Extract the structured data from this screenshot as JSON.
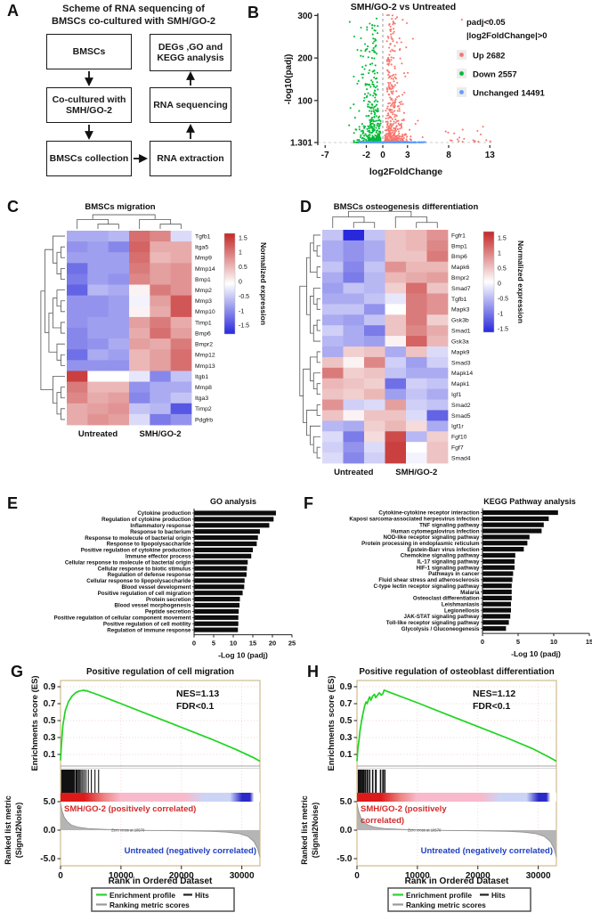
{
  "panelA": {
    "letter": "A",
    "title_line1": "Scheme of RNA sequencing of",
    "title_line2": "BMSCs co-cultured with SMH/GO-2",
    "boxes": {
      "bmscs": "BMSCs",
      "cocultured": "Co-cultured with SMH/GO-2",
      "collection": "BMSCs collection",
      "degs": "DEGs ,GO and KEGG analysis",
      "sequencing": "RNA sequencing",
      "extraction": "RNA extraction"
    }
  },
  "panelB": {
    "letter": "B",
    "chart_data": {
      "type": "scatter",
      "title": "SMH/GO-2 vs Untreated",
      "xlabel": "log2FoldChange",
      "ylabel": "-log10(padj)",
      "x_ticks": [
        -7,
        -2,
        0,
        3,
        8,
        13
      ],
      "y_tick_labels": [
        "300",
        "200",
        "100",
        "1.301"
      ],
      "y_tick_values": [
        300,
        200,
        100,
        1.301
      ],
      "xlim": [
        -7.9,
        13.5
      ],
      "ylim": [
        1.301,
        310
      ],
      "threshold_x": 0,
      "threshold_y": 1.301,
      "legend_header_line1": "padj<0.05",
      "legend_header_line2": "|log2FoldChange|>0",
      "legend_items": [
        {
          "label": "Up 2682",
          "color": "#f8766d",
          "count": 2682
        },
        {
          "label": "Down 2557",
          "color": "#00ba38",
          "count": 2557
        },
        {
          "label": "Unchanged 14491",
          "color": "#619cff",
          "count": 14491
        }
      ]
    }
  },
  "panelC": {
    "letter": "C",
    "chart_data": {
      "type": "heatmap",
      "title": "BMSCs migration",
      "column_groups": [
        "Untreated",
        "SMH/GO-2"
      ],
      "colorbar_label": "Normalized expression",
      "colorbar_ticks": [
        "1.5",
        "1",
        "0.5",
        "0",
        "-0.5",
        "-1",
        "-1.5"
      ],
      "colorbar_tick_values": [
        1.5,
        1,
        0.5,
        0,
        -0.5,
        -1,
        -1.5
      ],
      "genes": [
        "Tgfb1",
        "Itga5",
        "Mmp9",
        "Mmp14",
        "Bmp1",
        "Mmp2",
        "Mmp3",
        "Mmp10",
        "Timp1",
        "Bmp6",
        "Bmpr2",
        "Mmp12",
        "Mmp13",
        "Itgb1",
        "Mmp8",
        "Itga3",
        "Timp2",
        "Pdgfrb"
      ],
      "values": [
        [
          -0.7,
          -0.7,
          -0.6,
          1.2,
          1.0,
          -0.3
        ],
        [
          -0.9,
          -0.8,
          -1.0,
          1.3,
          0.7,
          0.7
        ],
        [
          -0.8,
          -0.8,
          -0.8,
          1.2,
          0.6,
          0.7
        ],
        [
          -1.2,
          -0.8,
          -0.8,
          1.1,
          0.8,
          0.9
        ],
        [
          -1.1,
          -0.8,
          -0.9,
          1.0,
          0.8,
          0.9
        ],
        [
          -1.3,
          -0.6,
          -0.7,
          0.1,
          1.1,
          0.9
        ],
        [
          -0.9,
          -0.9,
          -0.8,
          -0.1,
          0.8,
          1.4
        ],
        [
          -0.9,
          -0.9,
          -0.8,
          0.1,
          0.7,
          1.4
        ],
        [
          -0.9,
          -0.8,
          -0.8,
          0.8,
          1.1,
          0.7
        ],
        [
          -1.0,
          -0.8,
          -0.8,
          0.7,
          1.2,
          0.8
        ],
        [
          -1.0,
          -0.9,
          -0.7,
          0.8,
          0.7,
          1.1
        ],
        [
          -1.2,
          -0.7,
          -0.8,
          0.6,
          0.8,
          1.2
        ],
        [
          -0.9,
          -0.9,
          -0.9,
          0.6,
          0.8,
          1.2
        ],
        [
          1.6,
          0.0,
          0.0,
          -0.2,
          -1.0,
          -0.5
        ],
        [
          1.1,
          0.6,
          0.6,
          -0.9,
          -0.7,
          -0.7
        ],
        [
          1.0,
          0.7,
          0.8,
          -1.0,
          -0.7,
          -0.5
        ],
        [
          0.7,
          0.8,
          0.9,
          -0.5,
          -0.6,
          -1.4
        ],
        [
          0.7,
          0.9,
          0.8,
          -0.3,
          -1.1,
          -0.9
        ]
      ]
    }
  },
  "panelD": {
    "letter": "D",
    "chart_data": {
      "type": "heatmap",
      "title": "BMSCs osteogenesis differentiation",
      "column_groups": [
        "Untreated",
        "SMH/GO-2"
      ],
      "colorbar_label": "Normalized expression",
      "colorbar_ticks": [
        "1.5",
        "1",
        "0.5",
        "0",
        "-0.5",
        "-1",
        "-1.5"
      ],
      "colorbar_tick_values": [
        1.5,
        1,
        0.5,
        0,
        -0.5,
        -1,
        -1.5
      ],
      "genes": [
        "Fgfr1",
        "Bmp1",
        "Bmp6",
        "Mapk6",
        "Bmpr2",
        "Smad7",
        "Tgfb1",
        "Mapk3",
        "Gsk3b",
        "Smad1",
        "Gsk3a",
        "Mapk9",
        "Smad3",
        "Mapk14",
        "Mapk1",
        "Igf1",
        "Smad2",
        "Smad5",
        "Igf1r",
        "Fgf10",
        "Fgf7",
        "Smad4"
      ],
      "values": [
        [
          -0.5,
          -1.8,
          -0.5,
          0.5,
          0.6,
          0.9
        ],
        [
          -0.7,
          -0.9,
          -0.7,
          0.5,
          0.6,
          1.0
        ],
        [
          -0.7,
          -0.9,
          -0.7,
          0.5,
          0.5,
          1.1
        ],
        [
          -0.5,
          -1.0,
          -0.5,
          0.9,
          0.6,
          0.6
        ],
        [
          -0.7,
          -1.1,
          -0.6,
          0.6,
          0.7,
          0.8
        ],
        [
          -0.8,
          -0.5,
          -0.6,
          0.4,
          1.2,
          0.5
        ],
        [
          -0.7,
          -0.7,
          -0.5,
          -0.2,
          1.1,
          0.9
        ],
        [
          -0.5,
          -0.5,
          -0.9,
          0.0,
          1.1,
          0.9
        ],
        [
          -0.7,
          -0.8,
          -0.5,
          0.5,
          1.1,
          0.4
        ],
        [
          -0.4,
          -0.7,
          -1.1,
          0.5,
          1.0,
          0.7
        ],
        [
          -0.6,
          -0.7,
          -0.8,
          0.1,
          1.3,
          0.6
        ],
        [
          -0.7,
          0.4,
          0.5,
          -0.7,
          0.5,
          -0.3
        ],
        [
          0.5,
          0.1,
          1.0,
          -0.4,
          -0.8,
          -0.4
        ],
        [
          1.1,
          0.4,
          0.5,
          -0.5,
          -0.7,
          -0.7
        ],
        [
          0.6,
          0.5,
          0.4,
          -1.2,
          -0.4,
          -0.5
        ],
        [
          0.5,
          0.4,
          0.6,
          -0.8,
          -0.5,
          -0.7
        ],
        [
          0.9,
          -0.4,
          -0.3,
          0.8,
          -0.4,
          -0.5
        ],
        [
          0.5,
          0.1,
          0.5,
          0.5,
          -0.3,
          -1.3
        ],
        [
          -0.6,
          -0.7,
          0.4,
          0.6,
          0.3,
          -0.7
        ],
        [
          -0.3,
          -1.1,
          0.3,
          1.5,
          -0.6,
          0.4
        ],
        [
          -0.4,
          -0.9,
          -0.3,
          1.6,
          0.0,
          0.5
        ],
        [
          -0.3,
          -1.0,
          -0.4,
          1.6,
          -0.1,
          0.5
        ]
      ]
    }
  },
  "panelE": {
    "letter": "E",
    "chart_data": {
      "type": "bar",
      "title": "GO analysis",
      "xlabel": "-Log 10 (padj)",
      "x_ticks": [
        0,
        5,
        10,
        15,
        20,
        25
      ],
      "xlim": [
        0,
        25
      ],
      "categories": [
        "Cytokine production",
        "Regulation of cytokine production",
        "Inflammatory response",
        "Response to bacterium",
        "Response to molecule of bacterial origin",
        "Response to lipopolysaccharide",
        "Positive regulation of cytokine production",
        "Immune effector process",
        "Cellular response to molecule of bacterial origin",
        "Cellular response to biotic stimulus",
        "Regulation of defense response",
        "Cellular response to lipopolysaccharide",
        "Blood vessel development",
        "Positive regulation of cell migration",
        "Protein secretion",
        "Blood vessel morphogenesis",
        "Peptide secretion",
        "Positive regulation of cellular component movement",
        "Positive regulation of cell motility",
        "Regulation of immune response"
      ],
      "values": [
        20.9,
        20.3,
        19.2,
        16.8,
        16.3,
        16.0,
        15.0,
        14.6,
        13.7,
        13.5,
        13.4,
        12.9,
        12.8,
        12.4,
        11.7,
        11.6,
        11.4,
        11.3,
        11.3,
        11.2
      ],
      "bar_color": "#0d0d0d"
    }
  },
  "panelF": {
    "letter": "F",
    "chart_data": {
      "type": "bar",
      "title": "KEGG Pathway analysis",
      "xlabel": "-Log 10 (padj)",
      "x_ticks": [
        0,
        5,
        10,
        15
      ],
      "xlim": [
        0,
        15
      ],
      "categories": [
        "Cytokine-cytokine receptor interaction",
        "Kaposi sarcoma-associated herpesvirus infection",
        "TNF signaling pathway",
        "Human cytomegalovirus infection",
        "NOD-like receptor signaling pathway",
        "Protein processing in endoplasmic reticulum",
        "Epstein-Barr virus infection",
        "Chemokine signaling pathway",
        "IL-17 signaling pathway",
        "HIF-1 signaling pathway",
        "Pathways in cancer",
        "Fluid shear stress and atherosclerosis",
        "C-type lectin receptor signaling pathway",
        "Malaria",
        "Osteoclast differentiation",
        "Leishmaniasis",
        "Legionellosis",
        "JAK-STAT signaling pathway",
        "Toll-like receptor signaling pathway",
        "Glycolysis / Gluconeogenesis"
      ],
      "values": [
        10.6,
        9.3,
        8.6,
        8.3,
        6.6,
        6.3,
        5.8,
        4.6,
        4.5,
        4.5,
        4.3,
        4.2,
        4.1,
        4.1,
        4.1,
        4.0,
        4.0,
        3.9,
        3.7,
        3.3
      ],
      "bar_color": "#0d0d0d"
    }
  },
  "panelG": {
    "letter": "G",
    "chart_data": {
      "type": "gsea",
      "title": "Positive regulation of cell migration",
      "stats_line1": "NES=1.13",
      "stats_line2": "FDR<0.1",
      "nes": 1.13,
      "es_ylabel": "Enrichments score (ES)",
      "es_ticks": [
        "0.9",
        "0.7",
        "0.5",
        "0.3",
        "0.1"
      ],
      "es_tick_values": [
        0.9,
        0.7,
        0.5,
        0.3,
        0.1
      ],
      "metric_ylabel_line1": "Ranked list metric",
      "metric_ylabel_line2": "(Signal2Noise)",
      "metric_ticks": [
        "5.0",
        "0.0",
        "-5.0"
      ],
      "metric_tick_values": [
        5,
        0,
        -5
      ],
      "x_ticks": [
        0,
        10000,
        20000,
        30000
      ],
      "max_rank": 33000,
      "xlabel": "Rank in Ordered Dataset",
      "pos_label_lines": [
        "SMH/GO-2 (positively correlated)"
      ],
      "neg_label": "Untreated (negatively correlated)",
      "zero_cross": "Zero cross at 10570",
      "zero_cross_rank": 10570,
      "pos_label_color": "#d42a2a",
      "neg_label_color": "#1f3fbf",
      "curve_color": "#1fd41f",
      "legend": [
        {
          "label": "Enrichment profile",
          "color": "#2ed12e"
        },
        {
          "label": "Hits",
          "color": "#222222"
        },
        {
          "label": "Ranking metric scores",
          "color": "#9a9a9a"
        }
      ],
      "es_curve": [
        [
          0,
          0.03
        ],
        [
          150,
          0.22
        ],
        [
          400,
          0.45
        ],
        [
          800,
          0.62
        ],
        [
          1300,
          0.72
        ],
        [
          1900,
          0.79
        ],
        [
          2500,
          0.83
        ],
        [
          3100,
          0.85
        ],
        [
          3600,
          0.855
        ],
        [
          3900,
          0.86
        ],
        [
          4100,
          0.85
        ],
        [
          4300,
          0.855
        ],
        [
          4600,
          0.845
        ],
        [
          6000,
          0.81
        ],
        [
          10000,
          0.7
        ],
        [
          15000,
          0.56
        ],
        [
          20000,
          0.42
        ],
        [
          25000,
          0.28
        ],
        [
          29000,
          0.16
        ],
        [
          32000,
          0.06
        ],
        [
          33000,
          0.02
        ]
      ],
      "hits_block": [
        100,
        2350
      ],
      "hits": [
        2500,
        2650,
        2800,
        3000,
        3200,
        3400,
        3650,
        3900,
        4200,
        4600,
        5100,
        5700,
        6300
      ],
      "metric_curve": [
        [
          0,
          4.7
        ],
        [
          250,
          3.4
        ],
        [
          600,
          2.3
        ],
        [
          1100,
          1.5
        ],
        [
          1800,
          0.9
        ],
        [
          2800,
          0.55
        ],
        [
          4500,
          0.3
        ],
        [
          7000,
          0.15
        ],
        [
          10570,
          0.02
        ],
        [
          14000,
          -0.05
        ],
        [
          18000,
          -0.1
        ],
        [
          22000,
          -0.15
        ],
        [
          25000,
          -0.22
        ],
        [
          27500,
          -0.35
        ],
        [
          29500,
          -0.6
        ],
        [
          31000,
          -1.1
        ],
        [
          32000,
          -2.0
        ],
        [
          32600,
          -3.2
        ],
        [
          33000,
          -4.8
        ]
      ],
      "band_colors": [
        "#dd1a1a",
        "#ef8585",
        "#f8b9cb",
        "#ccd4f6",
        "#2a2ac8",
        "#ffffff"
      ]
    }
  },
  "panelH": {
    "letter": "H",
    "chart_data": {
      "type": "gsea",
      "title": "Positive regulation of osteoblast differentiation",
      "stats_line1": "NES=1.12",
      "stats_line2": "FDR<0.1",
      "nes": 1.12,
      "es_ylabel": "Enrichments score (ES)",
      "es_ticks": [
        "0.9",
        "0.7",
        "0.5",
        "0.3",
        "0.1"
      ],
      "es_tick_values": [
        0.9,
        0.7,
        0.5,
        0.3,
        0.1
      ],
      "metric_ylabel_line1": "Ranked list metric",
      "metric_ylabel_line2": "(Signal2Noise)",
      "metric_ticks": [
        "5.0",
        "0.0",
        "-5.0"
      ],
      "metric_tick_values": [
        5,
        0,
        -5
      ],
      "x_ticks": [
        0,
        10000,
        20000,
        30000
      ],
      "max_rank": 33000,
      "xlabel": "Rank in Ordered Dataset",
      "pos_label_lines": [
        "SMH/GO-2 (positively",
        "correlated)"
      ],
      "neg_label": "Untreated (negatively correlated)",
      "zero_cross": "Zero cross at 10570",
      "zero_cross_rank": 10570,
      "pos_label_color": "#d42a2a",
      "neg_label_color": "#1f3fbf",
      "curve_color": "#1fd41f",
      "legend": [
        {
          "label": "Enrichment profile",
          "color": "#2ed12e"
        },
        {
          "label": "Hits",
          "color": "#222222"
        },
        {
          "label": "Ranking metric scores",
          "color": "#9a9a9a"
        }
      ],
      "es_curve": [
        [
          0,
          0.02
        ],
        [
          150,
          0.17
        ],
        [
          350,
          0.28
        ],
        [
          500,
          0.38
        ],
        [
          700,
          0.47
        ],
        [
          900,
          0.55
        ],
        [
          1100,
          0.62
        ],
        [
          1300,
          0.68
        ],
        [
          1500,
          0.72
        ],
        [
          1700,
          0.7
        ],
        [
          1900,
          0.75
        ],
        [
          2100,
          0.78
        ],
        [
          2300,
          0.74
        ],
        [
          2600,
          0.79
        ],
        [
          2900,
          0.81
        ],
        [
          3100,
          0.77
        ],
        [
          3400,
          0.8
        ],
        [
          3700,
          0.83
        ],
        [
          4000,
          0.8
        ],
        [
          4300,
          0.82
        ],
        [
          4500,
          0.86
        ],
        [
          5000,
          0.845
        ],
        [
          10000,
          0.71
        ],
        [
          15000,
          0.57
        ],
        [
          20000,
          0.43
        ],
        [
          25000,
          0.29
        ],
        [
          29000,
          0.17
        ],
        [
          32000,
          0.06
        ],
        [
          33000,
          0.02
        ]
      ],
      "hits_block": null,
      "hits": [
        250,
        430,
        460,
        700,
        730,
        950,
        1150,
        1400,
        1700,
        1750,
        2100,
        2600,
        3100,
        3150,
        3900,
        4300,
        4600
      ],
      "metric_curve": [
        [
          0,
          4.7
        ],
        [
          250,
          3.4
        ],
        [
          600,
          2.3
        ],
        [
          1100,
          1.5
        ],
        [
          1800,
          0.9
        ],
        [
          2800,
          0.55
        ],
        [
          4500,
          0.3
        ],
        [
          7000,
          0.15
        ],
        [
          10570,
          0.02
        ],
        [
          14000,
          -0.05
        ],
        [
          18000,
          -0.1
        ],
        [
          22000,
          -0.15
        ],
        [
          25000,
          -0.22
        ],
        [
          27500,
          -0.35
        ],
        [
          29500,
          -0.6
        ],
        [
          31000,
          -1.1
        ],
        [
          32000,
          -2.0
        ],
        [
          32600,
          -3.2
        ],
        [
          33000,
          -4.8
        ]
      ],
      "band_colors": [
        "#dd1a1a",
        "#ef8585",
        "#f8b9cb",
        "#ccd4f6",
        "#2a2ac8",
        "#ffffff"
      ]
    }
  }
}
